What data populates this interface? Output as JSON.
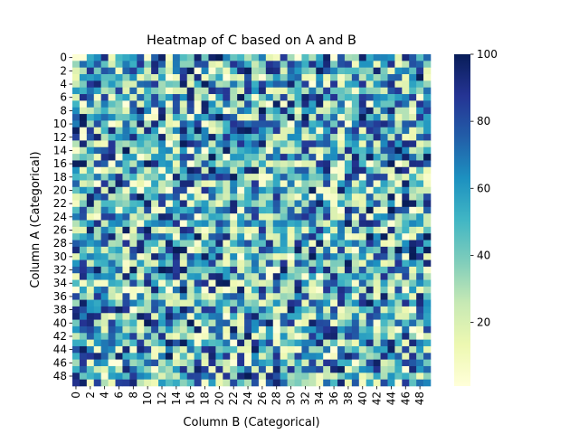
{
  "chart_data": {
    "type": "heatmap",
    "title": "Heatmap of C based on A and B",
    "xlabel": "Column B (Categorical)",
    "ylabel": "Column A (Categorical)",
    "x_categories": [
      0,
      1,
      2,
      3,
      4,
      5,
      6,
      7,
      8,
      9,
      10,
      11,
      12,
      13,
      14,
      15,
      16,
      17,
      18,
      19,
      20,
      21,
      22,
      23,
      24,
      25,
      26,
      27,
      28,
      29,
      30,
      31,
      32,
      33,
      34,
      35,
      36,
      37,
      38,
      39,
      40,
      41,
      42,
      43,
      44,
      45,
      46,
      47,
      48,
      49
    ],
    "y_categories": [
      0,
      1,
      2,
      3,
      4,
      5,
      6,
      7,
      8,
      9,
      10,
      11,
      12,
      13,
      14,
      15,
      16,
      17,
      18,
      19,
      20,
      21,
      22,
      23,
      24,
      25,
      26,
      27,
      28,
      29,
      30,
      31,
      32,
      33,
      34,
      35,
      36,
      37,
      38,
      39,
      40,
      41,
      42,
      43,
      44,
      45,
      46,
      47,
      48,
      49
    ],
    "x_tick_labels": [
      "0",
      "2",
      "4",
      "6",
      "8",
      "10",
      "12",
      "14",
      "16",
      "18",
      "20",
      "22",
      "24",
      "26",
      "28",
      "30",
      "32",
      "34",
      "36",
      "38",
      "40",
      "42",
      "44",
      "46",
      "48"
    ],
    "y_tick_labels": [
      "0",
      "2",
      "4",
      "6",
      "8",
      "10",
      "12",
      "14",
      "16",
      "18",
      "20",
      "22",
      "24",
      "26",
      "28",
      "30",
      "32",
      "34",
      "36",
      "38",
      "40",
      "42",
      "44",
      "46",
      "48"
    ],
    "colorbar": {
      "min": 1,
      "max": 100,
      "ticks": [
        "20",
        "40",
        "60",
        "80",
        "100"
      ],
      "colormap": "YlGnBu",
      "colors": [
        "#ffffd9",
        "#edf8b1",
        "#c7e9b4",
        "#7fcdbb",
        "#41b6c4",
        "#1d91c0",
        "#225ea8",
        "#253494",
        "#081d58"
      ]
    },
    "values_note_rows": 50,
    "values_note_cols": 50,
    "values_generated": true
  }
}
